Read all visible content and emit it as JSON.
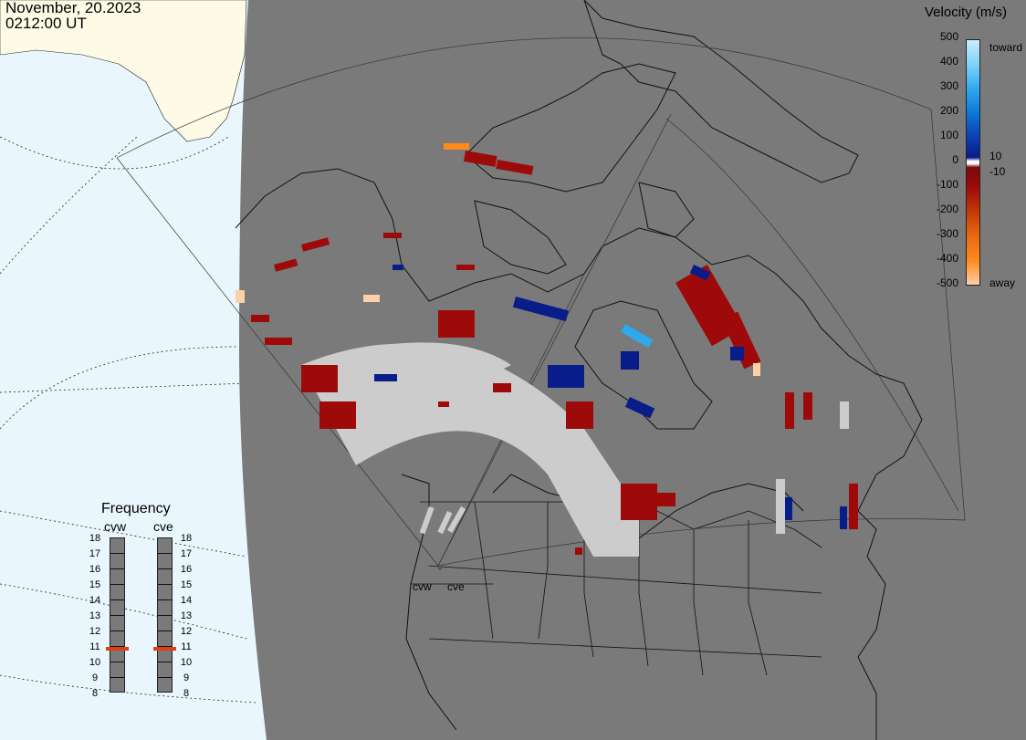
{
  "header": {
    "date": "November, 20.2023",
    "time": "0212:00 UT"
  },
  "velocity_scale": {
    "title": "Velocity (m/s)",
    "ticks": [
      "500",
      "400",
      "300",
      "200",
      "100",
      "0",
      "-100",
      "-200",
      "-300",
      "-400",
      "-500"
    ],
    "small_ticks": [
      "10",
      "-10"
    ],
    "toward_label": "toward",
    "away_label": "away",
    "colors": [
      "#c9ecfc",
      "#7fd2f7",
      "#2ea9ee",
      "#0d76d6",
      "#0c3eb2",
      "#081c8a",
      "#ffffff",
      "#7a0a0a",
      "#9e0a0a",
      "#c33808",
      "#e86810",
      "#ff8a1c",
      "#fdd0a8"
    ]
  },
  "frequency_panel": {
    "title": "Frequency",
    "radars": [
      {
        "name": "cvw",
        "frequency_mhz": 10.8
      },
      {
        "name": "cve",
        "frequency_mhz": 10.8
      }
    ],
    "ticks": [
      "18",
      "17",
      "16",
      "15",
      "14",
      "13",
      "12",
      "11",
      "10",
      "9",
      "8"
    ],
    "marker_color": "#e0400a"
  },
  "map": {
    "ocean_color": "#e9f6fe",
    "land_color": "#fdfbe6",
    "dark_region_color": "#7a7a7a",
    "no_scatter_color": "#cccccc",
    "site_labels": [
      "cvw",
      "cve"
    ]
  }
}
